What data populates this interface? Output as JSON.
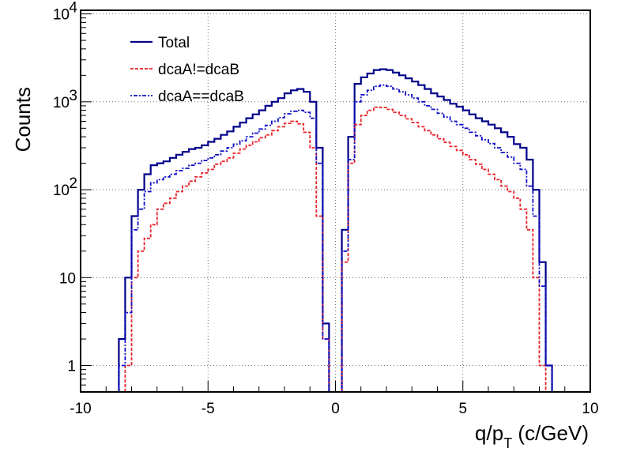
{
  "chart_data": {
    "type": "line",
    "xlabel": "q/p_T (c/GeV)",
    "ylabel": "Counts",
    "xlim": [
      -10,
      10
    ],
    "ylim": [
      0.5,
      11000
    ],
    "y_scale": "log",
    "grid": true,
    "legend_position": "top-left",
    "x_tick_labels": [
      "-10",
      "-5",
      "0",
      "5",
      "10"
    ],
    "y_tick_labels": [
      {
        "value": 1,
        "label": "1"
      },
      {
        "value": 10,
        "label": "10"
      },
      {
        "value": 100,
        "label": "10",
        "sup": "2"
      },
      {
        "value": 1000,
        "label": "10",
        "sup": "3"
      },
      {
        "value": 10000,
        "label": "10",
        "sup": "4"
      }
    ],
    "bin_width": 0.25,
    "series": [
      {
        "name": "Total",
        "color": "#00008b",
        "dash": "solid",
        "bins": [
          [
            -8.5,
            -8.25,
            2
          ],
          [
            -8.25,
            -8.0,
            10
          ],
          [
            -8.0,
            -7.75,
            50
          ],
          [
            -7.75,
            -7.5,
            100
          ],
          [
            -7.5,
            -7.25,
            150
          ],
          [
            -7.25,
            -7.0,
            190
          ],
          [
            -7.0,
            -6.75,
            200
          ],
          [
            -6.75,
            -6.5,
            210
          ],
          [
            -6.5,
            -6.25,
            230
          ],
          [
            -6.25,
            -6.0,
            250
          ],
          [
            -6.0,
            -5.75,
            270
          ],
          [
            -5.75,
            -5.5,
            290
          ],
          [
            -5.5,
            -5.25,
            300
          ],
          [
            -5.25,
            -5.0,
            320
          ],
          [
            -5.0,
            -4.75,
            350
          ],
          [
            -4.75,
            -4.5,
            380
          ],
          [
            -4.5,
            -4.25,
            420
          ],
          [
            -4.25,
            -4.0,
            460
          ],
          [
            -4.0,
            -3.75,
            520
          ],
          [
            -3.75,
            -3.5,
            580
          ],
          [
            -3.5,
            -3.25,
            650
          ],
          [
            -3.25,
            -3.0,
            720
          ],
          [
            -3.0,
            -2.75,
            800
          ],
          [
            -2.75,
            -2.5,
            900
          ],
          [
            -2.5,
            -2.25,
            1000
          ],
          [
            -2.25,
            -2.0,
            1100
          ],
          [
            -2.0,
            -1.75,
            1250
          ],
          [
            -1.75,
            -1.5,
            1350
          ],
          [
            -1.5,
            -1.25,
            1400
          ],
          [
            -1.25,
            -1.0,
            1300
          ],
          [
            -1.0,
            -0.75,
            1000
          ],
          [
            -0.75,
            -0.5,
            300
          ],
          [
            -0.5,
            -0.25,
            3
          ]
        ]
      },
      {
        "name": "Total",
        "color": "#00008b",
        "dash": "solid",
        "bins": [
          [
            0.25,
            0.5,
            35
          ],
          [
            0.5,
            0.75,
            400
          ],
          [
            0.75,
            1.0,
            1600
          ],
          [
            1.0,
            1.25,
            1900
          ],
          [
            1.25,
            1.5,
            2100
          ],
          [
            1.5,
            1.75,
            2300
          ],
          [
            1.75,
            2.0,
            2350
          ],
          [
            2.0,
            2.25,
            2300
          ],
          [
            2.25,
            2.5,
            2150
          ],
          [
            2.5,
            2.75,
            2000
          ],
          [
            2.75,
            3.0,
            1850
          ],
          [
            3.0,
            3.25,
            1700
          ],
          [
            3.25,
            3.5,
            1550
          ],
          [
            3.5,
            3.75,
            1400
          ],
          [
            3.75,
            4.0,
            1250
          ],
          [
            4.0,
            4.25,
            1150
          ],
          [
            4.25,
            4.5,
            1050
          ],
          [
            4.5,
            4.75,
            950
          ],
          [
            4.75,
            5.0,
            880
          ],
          [
            5.0,
            5.25,
            800
          ],
          [
            5.25,
            5.5,
            720
          ],
          [
            5.5,
            5.75,
            650
          ],
          [
            5.75,
            6.0,
            600
          ],
          [
            6.0,
            6.25,
            550
          ],
          [
            6.25,
            6.5,
            500
          ],
          [
            6.5,
            6.75,
            450
          ],
          [
            6.75,
            7.0,
            400
          ],
          [
            7.0,
            7.25,
            330
          ],
          [
            7.25,
            7.5,
            300
          ],
          [
            7.5,
            7.75,
            220
          ],
          [
            7.75,
            8.0,
            100
          ],
          [
            8.0,
            8.25,
            15
          ],
          [
            8.25,
            8.5,
            1
          ]
        ]
      },
      {
        "name": "dcaA!=dcaB",
        "color": "#e8232a",
        "dash": "4,2",
        "bins": [
          [
            -8.25,
            -8.0,
            1
          ],
          [
            -8.0,
            -7.75,
            10
          ],
          [
            -7.75,
            -7.5,
            20
          ],
          [
            -7.5,
            -7.25,
            28
          ],
          [
            -7.25,
            -7.0,
            40
          ],
          [
            -7.0,
            -6.75,
            60
          ],
          [
            -6.75,
            -6.5,
            70
          ],
          [
            -6.5,
            -6.25,
            80
          ],
          [
            -6.25,
            -6.0,
            95
          ],
          [
            -6.0,
            -5.75,
            110
          ],
          [
            -5.75,
            -5.5,
            125
          ],
          [
            -5.5,
            -5.25,
            140
          ],
          [
            -5.25,
            -5.0,
            155
          ],
          [
            -5.0,
            -4.75,
            170
          ],
          [
            -4.75,
            -4.5,
            195
          ],
          [
            -4.5,
            -4.25,
            210
          ],
          [
            -4.25,
            -4.0,
            230
          ],
          [
            -4.0,
            -3.75,
            260
          ],
          [
            -3.75,
            -3.5,
            290
          ],
          [
            -3.5,
            -3.25,
            320
          ],
          [
            -3.25,
            -3.0,
            350
          ],
          [
            -3.0,
            -2.75,
            390
          ],
          [
            -2.75,
            -2.5,
            420
          ],
          [
            -2.5,
            -2.25,
            470
          ],
          [
            -2.25,
            -2.0,
            520
          ],
          [
            -2.0,
            -1.75,
            570
          ],
          [
            -1.75,
            -1.5,
            600
          ],
          [
            -1.5,
            -1.25,
            560
          ],
          [
            -1.25,
            -1.0,
            450
          ],
          [
            -1.0,
            -0.75,
            300
          ],
          [
            -0.75,
            -0.5,
            50
          ],
          [
            -0.5,
            -0.25,
            2
          ]
        ]
      },
      {
        "name": "dcaA!=dcaB",
        "color": "#e8232a",
        "dash": "4,2",
        "bins": [
          [
            0.25,
            0.5,
            15
          ],
          [
            0.5,
            0.75,
            200
          ],
          [
            0.75,
            1.0,
            550
          ],
          [
            1.0,
            1.25,
            700
          ],
          [
            1.25,
            1.5,
            800
          ],
          [
            1.5,
            1.75,
            870
          ],
          [
            1.75,
            2.0,
            860
          ],
          [
            2.0,
            2.25,
            820
          ],
          [
            2.25,
            2.5,
            760
          ],
          [
            2.5,
            2.75,
            700
          ],
          [
            2.75,
            3.0,
            640
          ],
          [
            3.0,
            3.25,
            580
          ],
          [
            3.25,
            3.5,
            520
          ],
          [
            3.5,
            3.75,
            470
          ],
          [
            3.75,
            4.0,
            420
          ],
          [
            4.0,
            4.25,
            380
          ],
          [
            4.25,
            4.5,
            345
          ],
          [
            4.5,
            4.75,
            310
          ],
          [
            4.75,
            5.0,
            280
          ],
          [
            5.0,
            5.25,
            250
          ],
          [
            5.25,
            5.5,
            220
          ],
          [
            5.5,
            5.75,
            195
          ],
          [
            5.75,
            6.0,
            170
          ],
          [
            6.0,
            6.25,
            150
          ],
          [
            6.25,
            6.5,
            130
          ],
          [
            6.5,
            6.75,
            110
          ],
          [
            6.75,
            7.0,
            95
          ],
          [
            7.0,
            7.25,
            80
          ],
          [
            7.25,
            7.5,
            60
          ],
          [
            7.5,
            7.75,
            35
          ],
          [
            7.75,
            8.0,
            10
          ],
          [
            8.0,
            8.25,
            1
          ]
        ]
      },
      {
        "name": "dcaA==dcaB",
        "color": "#1010c8",
        "dash": "2,2,5,2",
        "bins": [
          [
            -8.5,
            -8.25,
            1
          ],
          [
            -8.25,
            -8.0,
            4
          ],
          [
            -8.0,
            -7.75,
            35
          ],
          [
            -7.75,
            -7.5,
            60
          ],
          [
            -7.5,
            -7.25,
            95
          ],
          [
            -7.25,
            -7.0,
            120
          ],
          [
            -7.0,
            -6.75,
            130
          ],
          [
            -6.75,
            -6.5,
            140
          ],
          [
            -6.5,
            -6.25,
            150
          ],
          [
            -6.25,
            -6.0,
            165
          ],
          [
            -6.0,
            -5.75,
            175
          ],
          [
            -5.75,
            -5.5,
            190
          ],
          [
            -5.5,
            -5.25,
            200
          ],
          [
            -5.25,
            -5.0,
            215
          ],
          [
            -5.0,
            -4.75,
            230
          ],
          [
            -4.75,
            -4.5,
            250
          ],
          [
            -4.5,
            -4.25,
            275
          ],
          [
            -4.25,
            -4.0,
            300
          ],
          [
            -4.0,
            -3.75,
            330
          ],
          [
            -3.75,
            -3.5,
            360
          ],
          [
            -3.5,
            -3.25,
            400
          ],
          [
            -3.25,
            -3.0,
            440
          ],
          [
            -3.0,
            -2.75,
            490
          ],
          [
            -2.75,
            -2.5,
            540
          ],
          [
            -2.5,
            -2.25,
            600
          ],
          [
            -2.25,
            -2.0,
            660
          ],
          [
            -2.0,
            -1.75,
            730
          ],
          [
            -1.75,
            -1.5,
            780
          ],
          [
            -1.5,
            -1.25,
            800
          ],
          [
            -1.25,
            -1.0,
            760
          ],
          [
            -1.0,
            -0.75,
            650
          ],
          [
            -0.75,
            -0.5,
            200
          ],
          [
            -0.5,
            -0.25,
            2
          ]
        ]
      },
      {
        "name": "dcaA==dcaB",
        "color": "#1010c8",
        "dash": "2,2,5,2",
        "bins": [
          [
            0.25,
            0.5,
            20
          ],
          [
            0.5,
            0.75,
            220
          ],
          [
            0.75,
            1.0,
            1000
          ],
          [
            1.0,
            1.25,
            1200
          ],
          [
            1.25,
            1.5,
            1350
          ],
          [
            1.5,
            1.75,
            1500
          ],
          [
            1.75,
            2.0,
            1550
          ],
          [
            2.0,
            2.25,
            1500
          ],
          [
            2.25,
            2.5,
            1400
          ],
          [
            2.5,
            2.75,
            1300
          ],
          [
            2.75,
            3.0,
            1200
          ],
          [
            3.0,
            3.25,
            1100
          ],
          [
            3.25,
            3.5,
            1000
          ],
          [
            3.5,
            3.75,
            900
          ],
          [
            3.75,
            4.0,
            820
          ],
          [
            4.0,
            4.25,
            740
          ],
          [
            4.25,
            4.5,
            670
          ],
          [
            4.5,
            4.75,
            600
          ],
          [
            4.75,
            5.0,
            550
          ],
          [
            5.0,
            5.25,
            500
          ],
          [
            5.25,
            5.5,
            450
          ],
          [
            5.5,
            5.75,
            410
          ],
          [
            5.75,
            6.0,
            370
          ],
          [
            6.0,
            6.25,
            335
          ],
          [
            6.25,
            6.5,
            300
          ],
          [
            6.5,
            6.75,
            265
          ],
          [
            6.75,
            7.0,
            235
          ],
          [
            7.0,
            7.25,
            200
          ],
          [
            7.25,
            7.5,
            170
          ],
          [
            7.5,
            7.75,
            110
          ],
          [
            7.75,
            8.0,
            50
          ],
          [
            8.0,
            8.25,
            8
          ],
          [
            8.25,
            8.5,
            1
          ]
        ]
      }
    ],
    "legend": [
      {
        "label": "Total",
        "color": "#00008b",
        "dash": "solid"
      },
      {
        "label": "dcaA!=dcaB",
        "color": "#e8232a",
        "dash": "4,2"
      },
      {
        "label": "dcaA==dcaB",
        "color": "#1010c8",
        "dash": "2,2,5,2"
      }
    ]
  }
}
